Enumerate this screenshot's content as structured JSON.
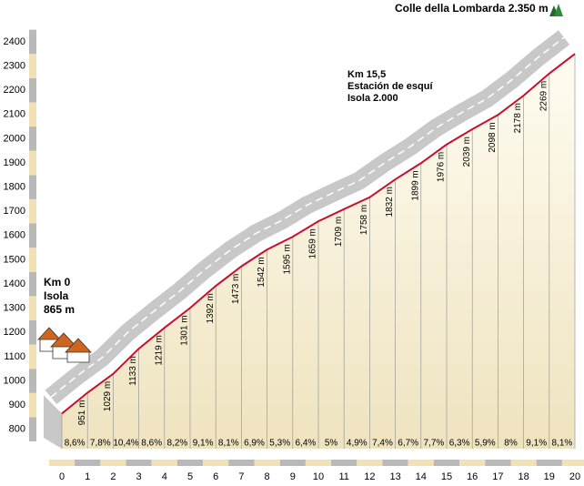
{
  "chart_data": {
    "type": "profile",
    "x": [
      0,
      1,
      2,
      3,
      4,
      5,
      6,
      7,
      8,
      9,
      10,
      11,
      12,
      13,
      14,
      15,
      16,
      17,
      18,
      19,
      20
    ],
    "values": [
      865,
      951,
      1029,
      1133,
      1219,
      1301,
      1392,
      1473,
      1542,
      1595,
      1659,
      1709,
      1758,
      1832,
      1899,
      1976,
      2039,
      2098,
      2178,
      2269,
      2350
    ],
    "value_labels": [
      null,
      "951 m",
      "1029 m",
      "1133 m",
      "1219 m",
      "1301 m",
      "1392 m",
      "1473 m",
      "1542 m",
      "1595 m",
      "1659 m",
      "1709 m",
      "1758 m",
      "1832 m",
      "1899 m",
      "1976 m",
      "2039 m",
      "2098 m",
      "2178 m",
      "2269 m",
      null
    ],
    "gradients": [
      8.6,
      7.8,
      10.4,
      8.6,
      8.2,
      9.1,
      8.1,
      6.9,
      5.3,
      6.4,
      5,
      4.9,
      7.4,
      6.7,
      7.7,
      6.3,
      5.9,
      8,
      9.1,
      8.1
    ],
    "gradient_labels": [
      "8,6%",
      "7,8%",
      "10,4%",
      "8,6%",
      "8,2%",
      "9,1%",
      "8,1%",
      "6,9%",
      "5,3%",
      "6,4%",
      "5%",
      "4,9%",
      "7,4%",
      "6,7%",
      "7,7%",
      "6,3%",
      "5,9%",
      "8%",
      "9,1%",
      "8,1%"
    ],
    "color": "#c8102e",
    "xlim": [
      0,
      20
    ],
    "xticks": [
      0,
      1,
      2,
      3,
      4,
      5,
      6,
      7,
      8,
      9,
      10,
      11,
      12,
      13,
      14,
      15,
      16,
      17,
      18,
      19,
      20
    ],
    "ylim": [
      720,
      2535
    ],
    "yticks": [
      800,
      900,
      1000,
      1100,
      1200,
      1300,
      1400,
      1500,
      1600,
      1700,
      1800,
      1900,
      2000,
      2100,
      2200,
      2300,
      2400
    ],
    "annotations": {
      "start": [
        "Km 0",
        "Isola",
        "865 m"
      ],
      "station": [
        "Km 15,5",
        "Estación de esquí",
        "Isola 2.000"
      ],
      "summit": "Colle della Lombarda 2.350 m"
    }
  }
}
